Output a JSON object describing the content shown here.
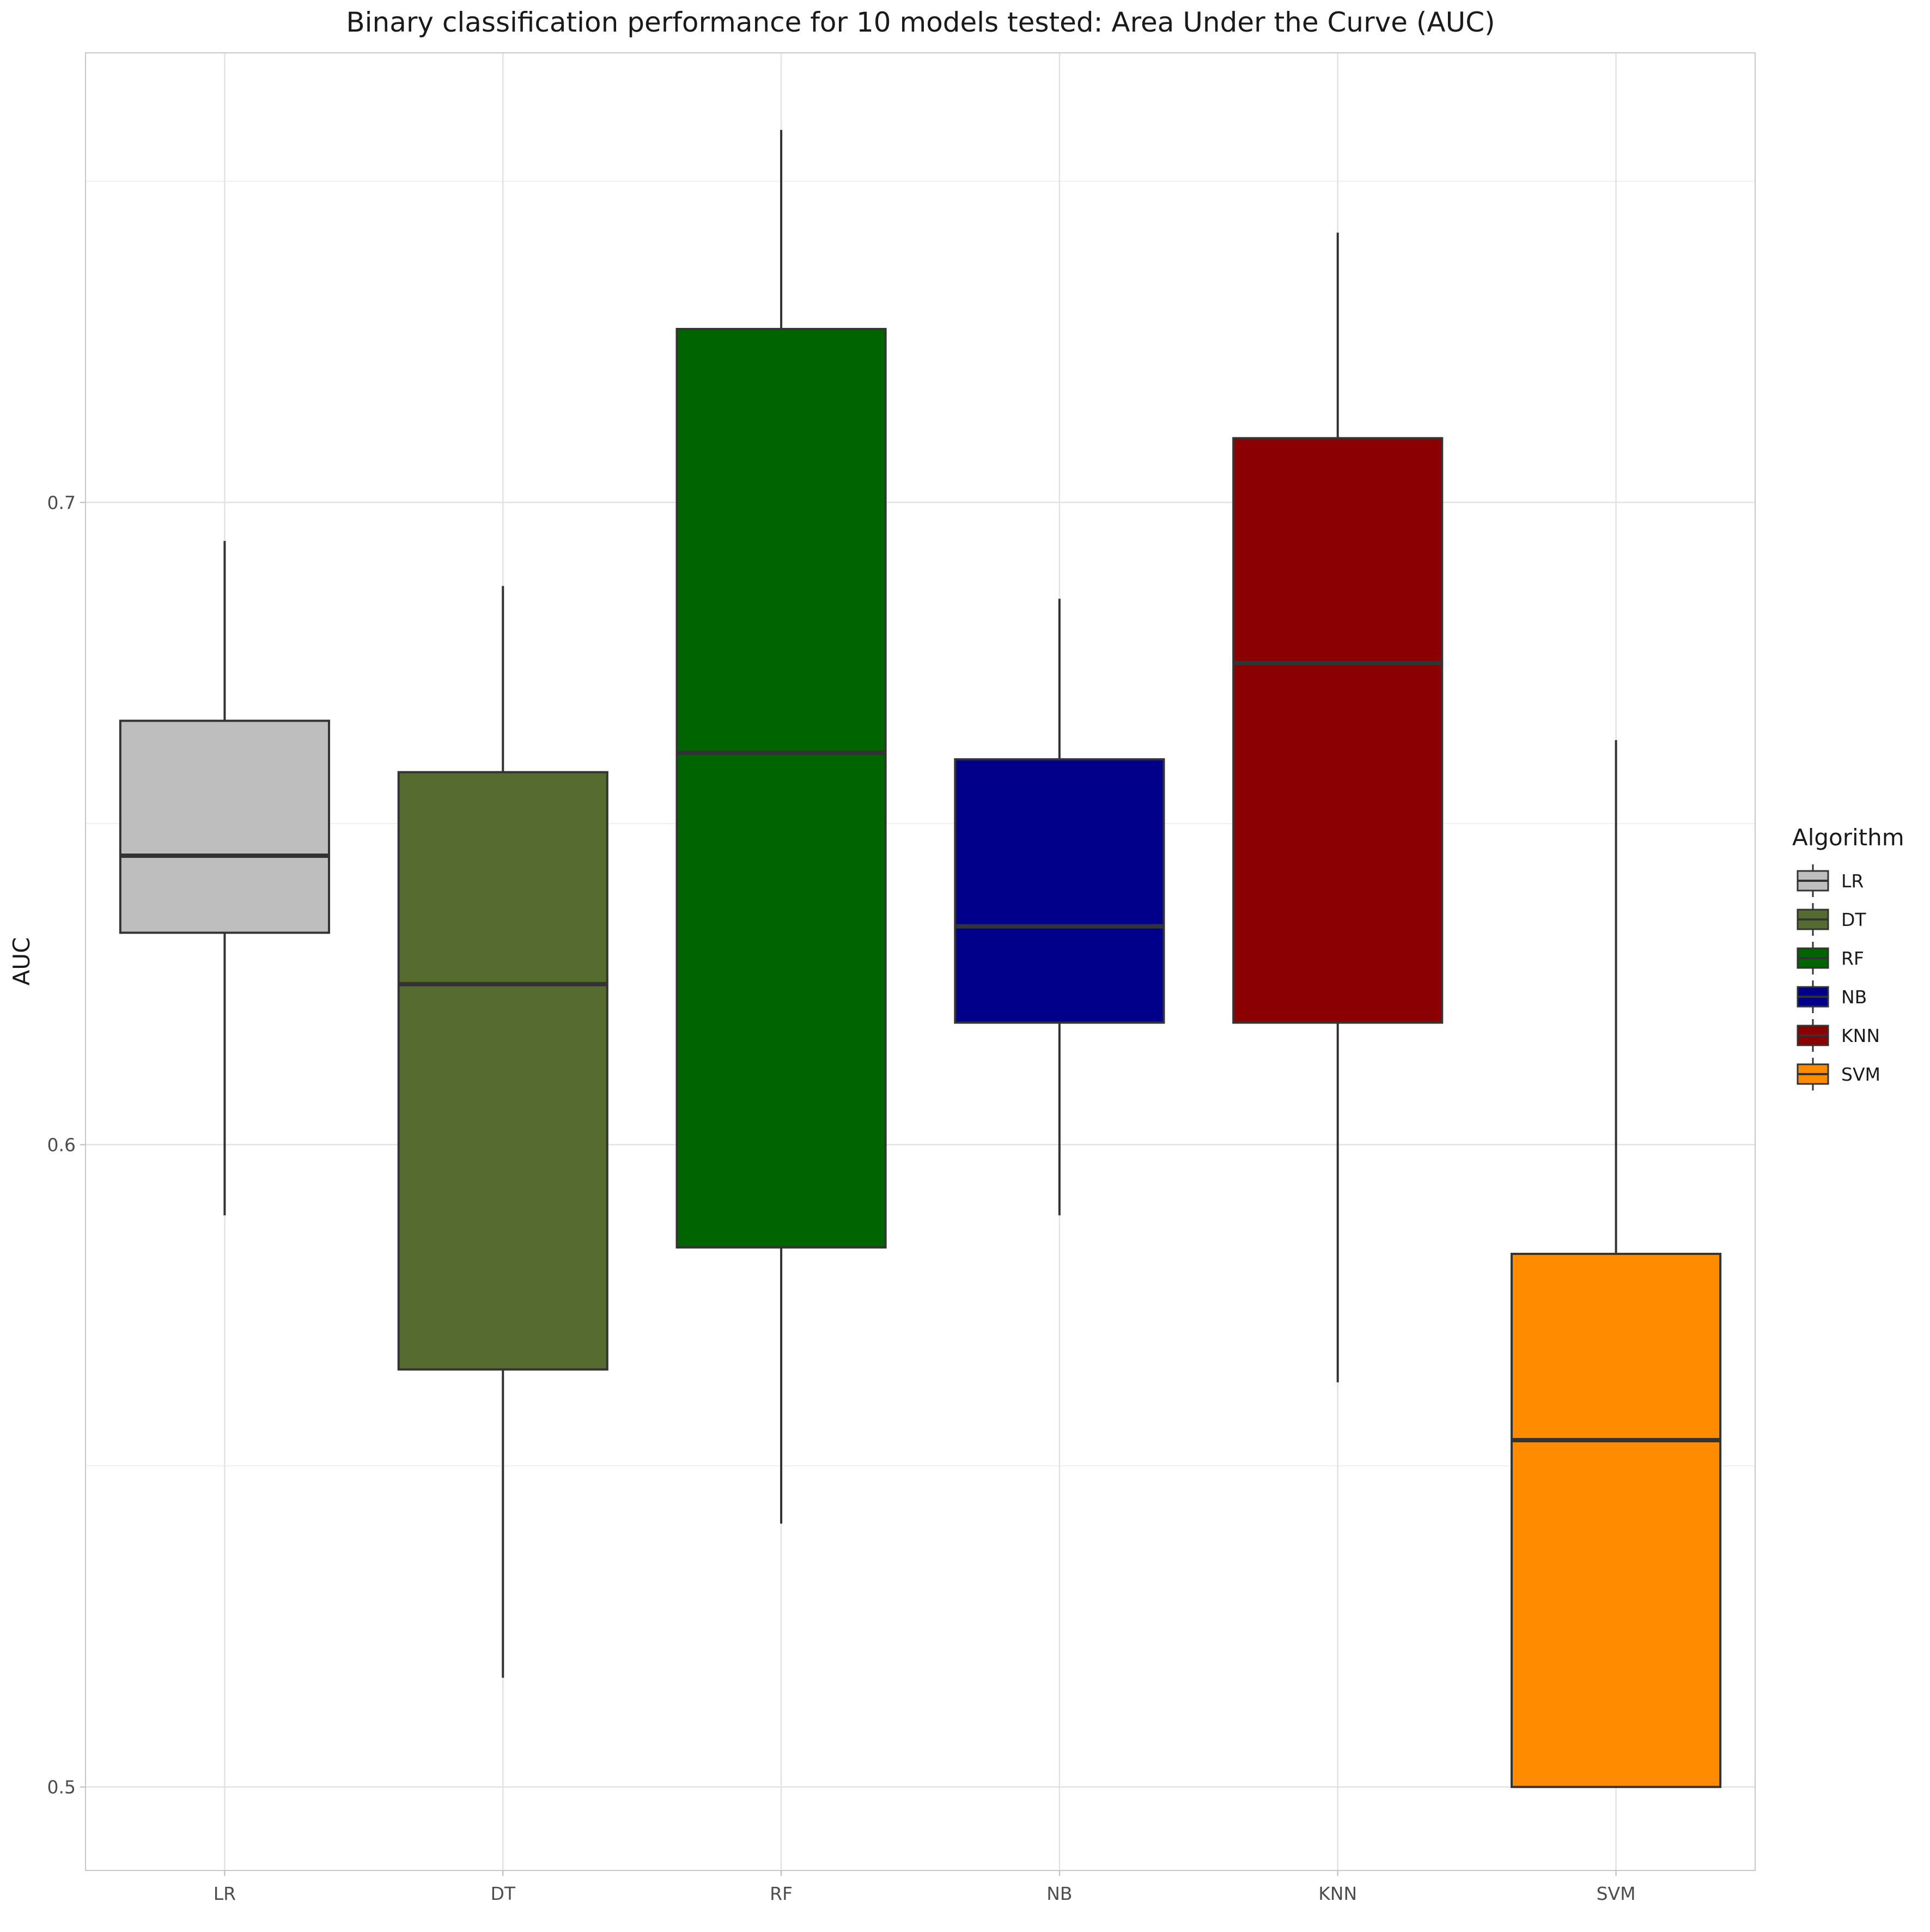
{
  "chart_data": {
    "type": "boxplot",
    "title": "Binary classification performance for 10 models tested: Area Under the Curve (AUC)",
    "xlabel": "",
    "ylabel": "AUC",
    "ylim": [
      0.487,
      0.77
    ],
    "y_ticks": [
      0.5,
      0.6,
      0.7
    ],
    "y_tick_labels": [
      "0.5",
      "0.6",
      "0.7"
    ],
    "grid": true,
    "legend": {
      "title": "Algorithm",
      "placement": "right"
    },
    "categories": [
      "LR",
      "DT",
      "RF",
      "NB",
      "KNN",
      "SVM"
    ],
    "boxes": [
      {
        "name": "LR",
        "color": "#BEBEBE",
        "min": 0.589,
        "q1": 0.633,
        "median": 0.645,
        "q3": 0.666,
        "max": 0.694
      },
      {
        "name": "DT",
        "color": "#556B2F",
        "min": 0.517,
        "q1": 0.565,
        "median": 0.625,
        "q3": 0.658,
        "max": 0.687
      },
      {
        "name": "RF",
        "color": "#006400",
        "min": 0.541,
        "q1": 0.584,
        "median": 0.661,
        "q3": 0.727,
        "max": 0.758
      },
      {
        "name": "NB",
        "color": "#00008B",
        "min": 0.589,
        "q1": 0.619,
        "median": 0.634,
        "q3": 0.66,
        "max": 0.685
      },
      {
        "name": "KNN",
        "color": "#8B0000",
        "min": 0.563,
        "q1": 0.619,
        "median": 0.675,
        "q3": 0.71,
        "max": 0.742
      },
      {
        "name": "SVM",
        "color": "#FF8C00",
        "min": 0.5,
        "q1": 0.5,
        "median": 0.554,
        "q3": 0.583,
        "max": 0.663
      }
    ]
  }
}
